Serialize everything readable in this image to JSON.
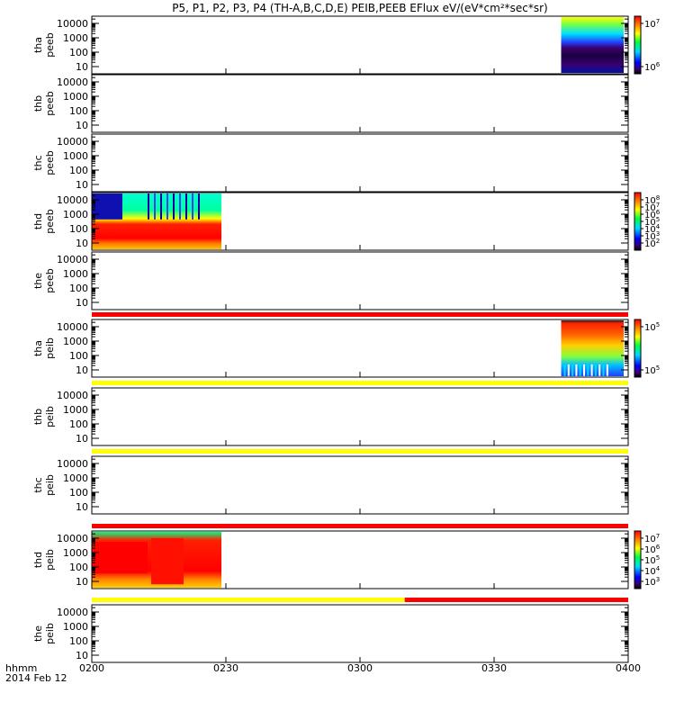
{
  "title": "P5, P1, P2, P3, P4 (TH-A,B,C,D,E) PEIB,PEEB EFlux eV/(eV*cm²*sec*sr)",
  "footer": {
    "label": "hhmm",
    "date": "2014 Feb 12"
  },
  "chart_data": {
    "type": "heatmap",
    "x_ticks": [
      "0200",
      "0230",
      "0300",
      "0330",
      "0400"
    ],
    "xlim": [
      "02:00",
      "04:00"
    ],
    "y_scale": "log",
    "y_ticks": [
      "10",
      "100",
      "1000",
      "10000"
    ],
    "colorscale": "rainbow",
    "panels": [
      {
        "id": "tha-peeb",
        "ylabel": [
          "tha",
          "peeb"
        ],
        "has_data": true,
        "data_range": [
          "03:45",
          "03:59"
        ],
        "flag_bar": null,
        "colorbar": {
          "ticks": [
            {
              "label": "10",
              "exp": "7",
              "value": 10000000
            },
            {
              "label": "10",
              "exp": "6",
              "value": 1000000
            }
          ]
        }
      },
      {
        "id": "thb-peeb",
        "ylabel": [
          "thb",
          "peeb"
        ],
        "has_data": false,
        "flag_bar": null,
        "colorbar": null
      },
      {
        "id": "thc-peeb",
        "ylabel": [
          "thc",
          "peeb"
        ],
        "has_data": false,
        "flag_bar": null,
        "colorbar": null
      },
      {
        "id": "thd-peeb",
        "ylabel": [
          "thd",
          "peeb"
        ],
        "has_data": true,
        "data_range": [
          "02:00",
          "02:29"
        ],
        "flag_bar": null,
        "colorbar": {
          "ticks": [
            {
              "label": "10",
              "exp": "8",
              "value": 100000000
            },
            {
              "label": "10",
              "exp": "7",
              "value": 10000000
            },
            {
              "label": "10",
              "exp": "6",
              "value": 1000000
            },
            {
              "label": "10",
              "exp": "5",
              "value": 100000
            },
            {
              "label": "10",
              "exp": "4",
              "value": 10000
            },
            {
              "label": "10",
              "exp": "3",
              "value": 1000
            },
            {
              "label": "10",
              "exp": "2",
              "value": 100
            }
          ]
        }
      },
      {
        "id": "the-peeb",
        "ylabel": [
          "the",
          "peeb"
        ],
        "has_data": false,
        "flag_bar": null,
        "colorbar": null
      },
      {
        "id": "tha-peib",
        "ylabel": [
          "tha",
          "peib"
        ],
        "has_data": true,
        "data_range": [
          "03:45",
          "03:59"
        ],
        "flag_bar": [
          {
            "from": "02:00",
            "to": "04:00",
            "color": "#ff0000"
          }
        ],
        "colorbar": {
          "ticks": [
            {
              "label": "10",
              "exp": "5",
              "value": 100000
            },
            {
              "label": "10",
              "exp": "5",
              "value": 100000
            }
          ]
        }
      },
      {
        "id": "thb-peib",
        "ylabel": [
          "thb",
          "peib"
        ],
        "has_data": false,
        "flag_bar": [
          {
            "from": "02:00",
            "to": "04:00",
            "color": "#ffff00"
          }
        ],
        "colorbar": null
      },
      {
        "id": "thc-peib",
        "ylabel": [
          "thc",
          "peib"
        ],
        "has_data": false,
        "flag_bar": [
          {
            "from": "02:00",
            "to": "04:00",
            "color": "#ffff00"
          }
        ],
        "colorbar": null
      },
      {
        "id": "thd-peib",
        "ylabel": [
          "thd",
          "peib"
        ],
        "has_data": true,
        "data_range": [
          "02:00",
          "02:29"
        ],
        "flag_bar": [
          {
            "from": "02:00",
            "to": "04:00",
            "color": "#ff0000"
          }
        ],
        "colorbar": {
          "ticks": [
            {
              "label": "10",
              "exp": "7",
              "value": 10000000
            },
            {
              "label": "10",
              "exp": "6",
              "value": 1000000
            },
            {
              "label": "10",
              "exp": "5",
              "value": 100000
            },
            {
              "label": "10",
              "exp": "4",
              "value": 10000
            },
            {
              "label": "10",
              "exp": "3",
              "value": 1000
            }
          ]
        }
      },
      {
        "id": "the-peib",
        "ylabel": [
          "the",
          "peib"
        ],
        "has_data": false,
        "flag_bar": [
          {
            "from": "02:00",
            "to": "03:10",
            "color": "#ffff00"
          },
          {
            "from": "03:10",
            "to": "04:00",
            "color": "#ff0000"
          }
        ],
        "colorbar": null
      }
    ]
  }
}
